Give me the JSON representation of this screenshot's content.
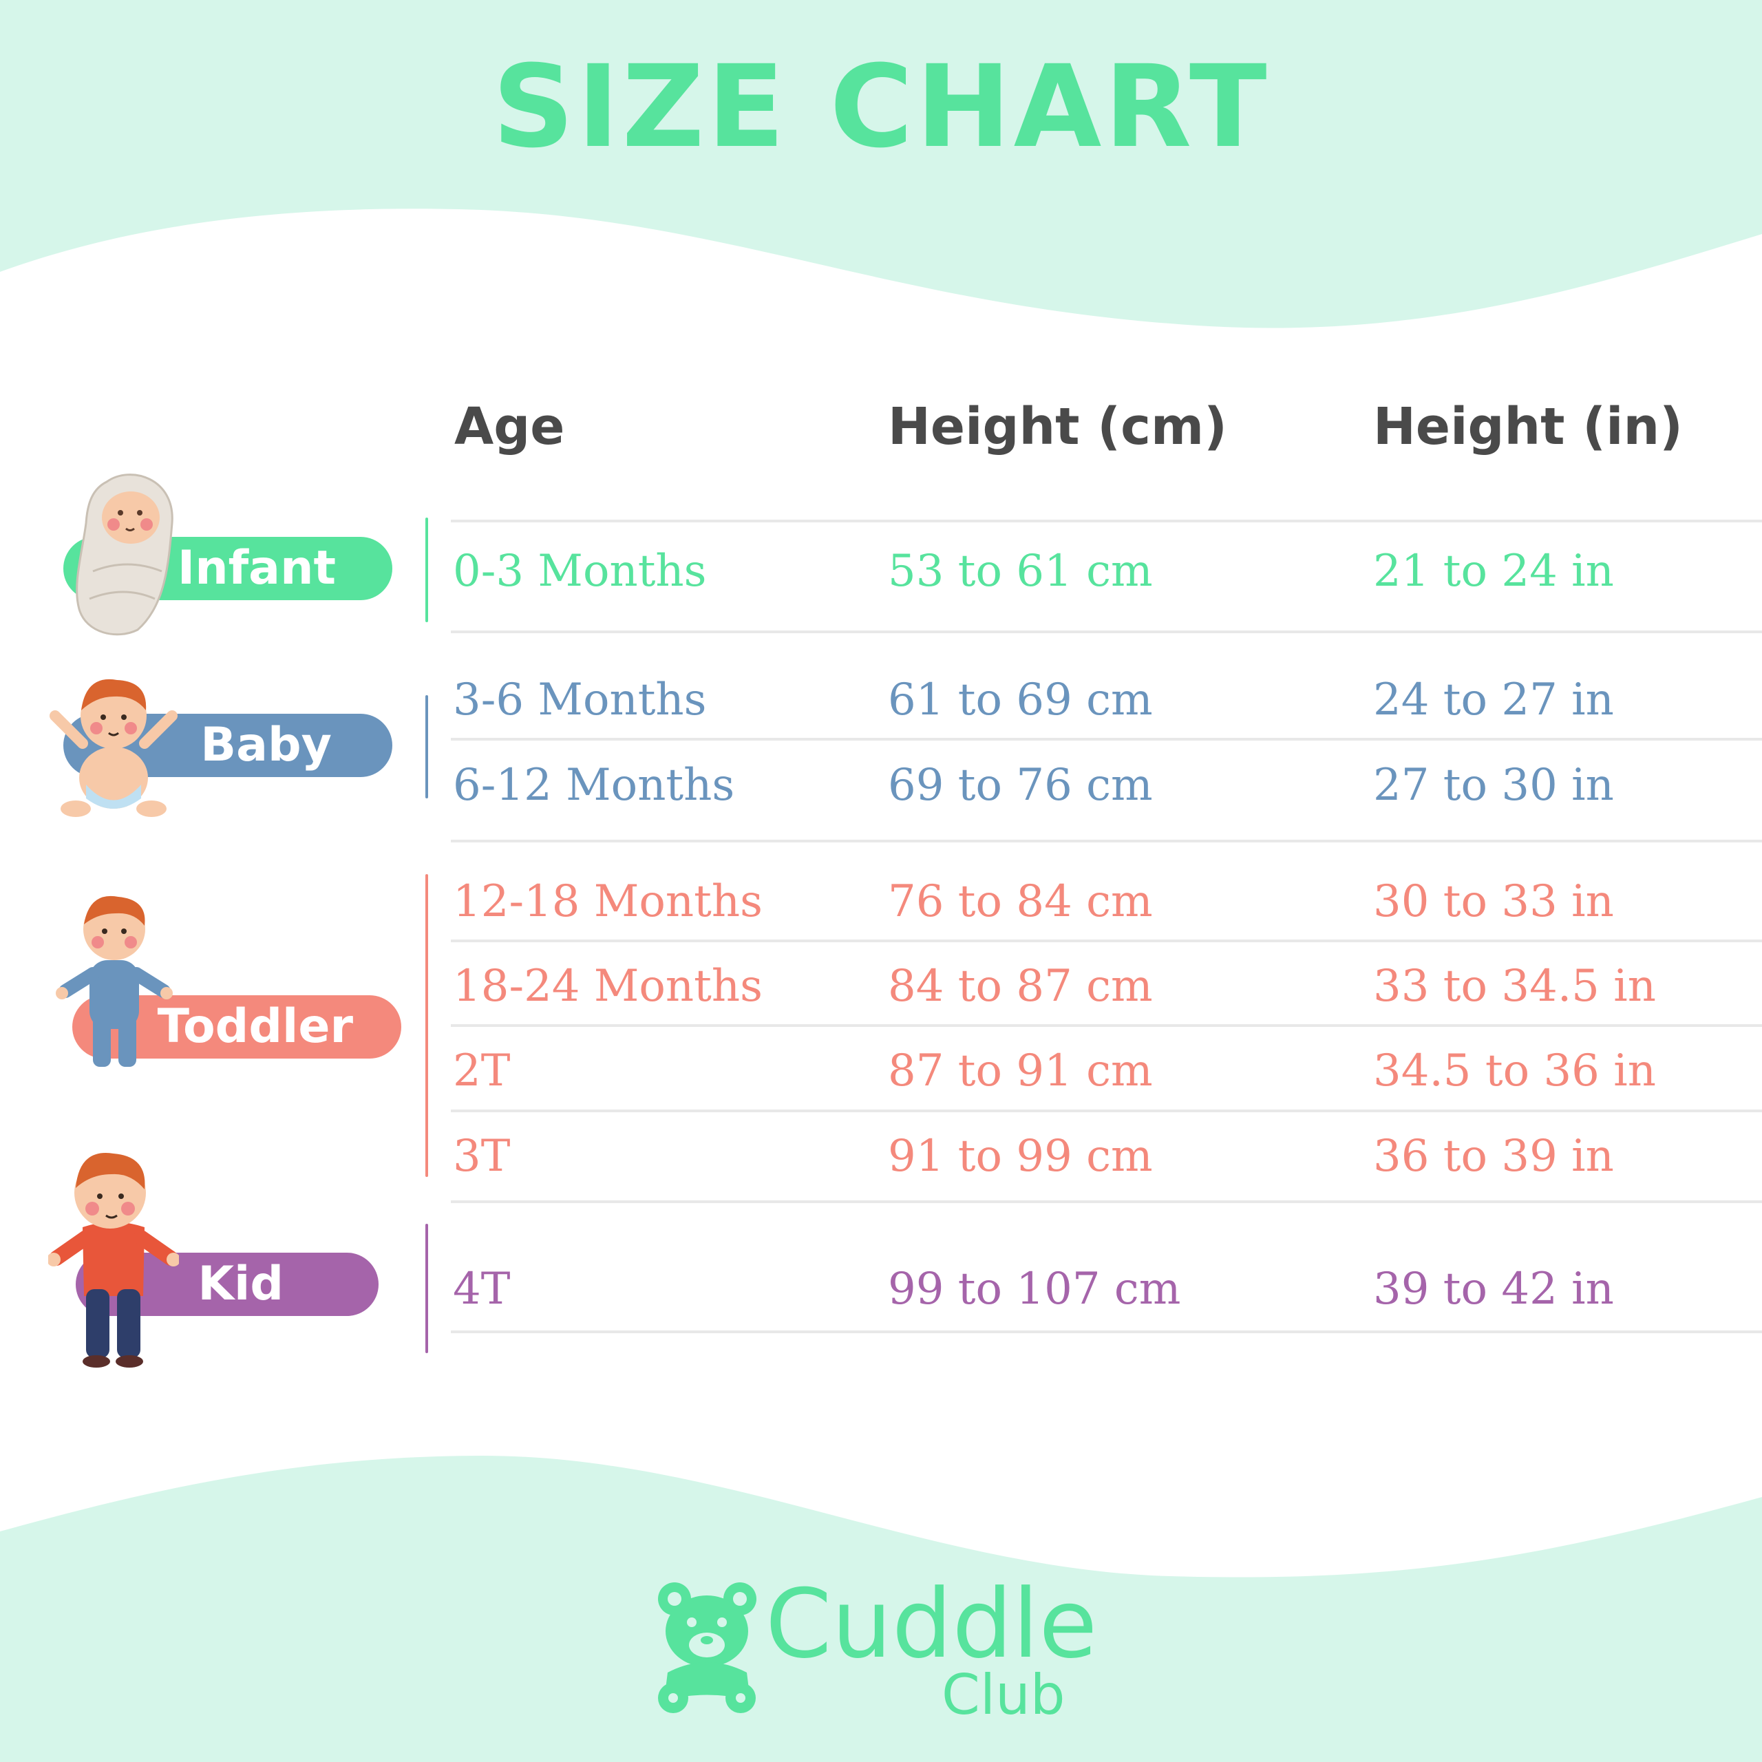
{
  "title": "SIZE CHART",
  "colors": {
    "accent_green": "#57e39d",
    "background_mint": "#d6f6ea",
    "header_text": "#4a4a4a",
    "infant": "#57e39d",
    "baby": "#6a94bd",
    "toddler": "#f4897c",
    "kid": "#a564aa"
  },
  "headers": {
    "age": "Age",
    "height_cm": "Height (cm)",
    "height_in": "Height (in)"
  },
  "groups": [
    {
      "label": "Infant",
      "icon": "swaddled-infant-icon",
      "rows": [
        {
          "age": "0-3 Months",
          "cm": "53 to 61 cm",
          "in": "21 to 24 in"
        }
      ]
    },
    {
      "label": "Baby",
      "icon": "baby-icon",
      "rows": [
        {
          "age": "3-6 Months",
          "cm": "61 to 69 cm",
          "in": "24 to 27 in"
        },
        {
          "age": "6-12 Months",
          "cm": "69 to 76 cm",
          "in": "27 to 30 in"
        }
      ]
    },
    {
      "label": "Toddler",
      "icon": "toddler-icon",
      "rows": [
        {
          "age": "12-18 Months",
          "cm": "76 to 84 cm",
          "in": "30 to 33 in"
        },
        {
          "age": "18-24 Months",
          "cm": "84 to 87 cm",
          "in": "33 to 34.5 in"
        },
        {
          "age": "2T",
          "cm": "87 to 91 cm",
          "in": "34.5 to 36 in"
        },
        {
          "age": "3T",
          "cm": "91 to 99 cm",
          "in": "36 to 39 in"
        }
      ]
    },
    {
      "label": "Kid",
      "icon": "kid-icon",
      "rows": [
        {
          "age": "4T",
          "cm": "99 to 107 cm",
          "in": "39 to 42 in"
        }
      ]
    }
  ],
  "brand": {
    "name_line1": "Cuddle",
    "name_line2": "Club",
    "icon": "teddy-bear-icon"
  }
}
